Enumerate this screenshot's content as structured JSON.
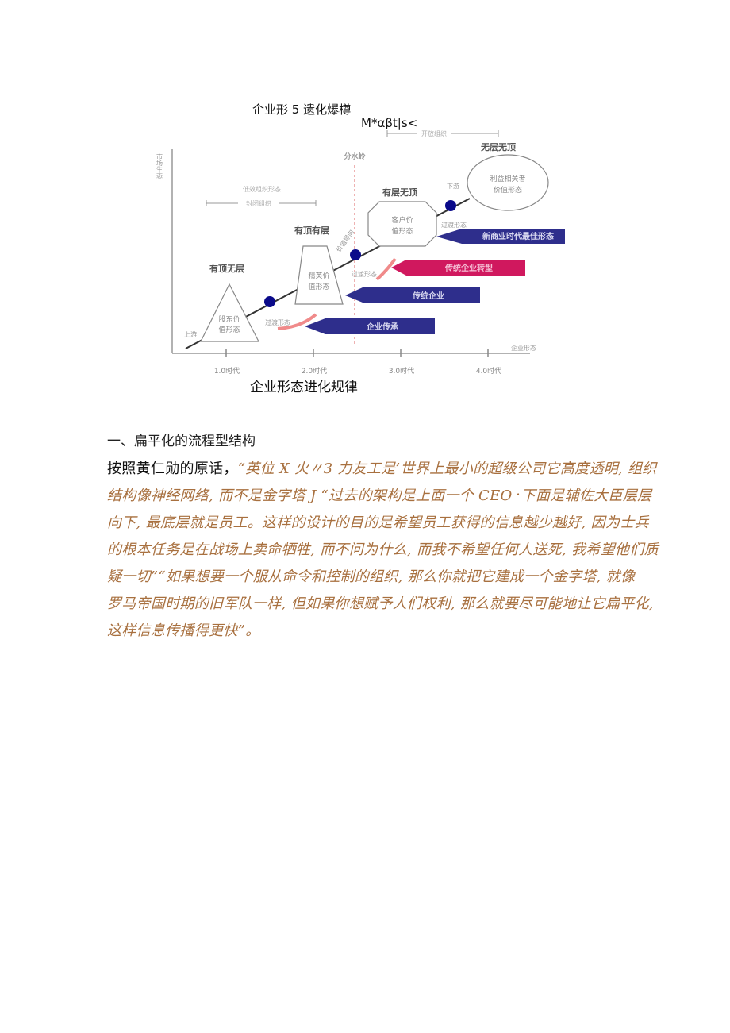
{
  "diagram": {
    "title": "企业形 5 遗化爆樽",
    "subtitle": "M*αβt|s<",
    "y_axis_label": "市场生态",
    "x_axis_label": "企业形态",
    "eras": [
      "1.0时代",
      "2.0时代",
      "3.0时代",
      "4.0时代"
    ],
    "watershed": "分水岭",
    "closed_bracket_top": "低效组织形态",
    "closed_bracket": "封闭组织",
    "open_bracket": "开放组织",
    "upstream": "上游",
    "downstream": "下游",
    "stages": [
      {
        "title": "有顶无层",
        "shape_text_1": "股东价",
        "shape_text_2": "值形态"
      },
      {
        "title": "有顶有层",
        "shape_text_1": "精英价",
        "shape_text_2": "值形态"
      },
      {
        "title": "有层无顶",
        "shape_text_1": "客户价",
        "shape_text_2": "值形态"
      },
      {
        "title": "无层无顶",
        "shape_text_1": "利益相关者",
        "shape_text_2": "价值形态"
      }
    ],
    "transition_label": "过渡形态",
    "value_orientation": "价值导向",
    "arrows": [
      {
        "label": "企业传承",
        "color": "#2e2e8c"
      },
      {
        "label": "传统企业",
        "color": "#2e2e8c"
      },
      {
        "label": "传统企业转型",
        "color": "#d0185e"
      },
      {
        "label": "新商业时代最佳形态",
        "color": "#2e2e8c"
      }
    ],
    "dot_color": "#0a0a8a",
    "caption": "企业形态进化规律"
  },
  "article": {
    "heading": "一、扁平化的流程型结构",
    "lead": "按照黄仁勋的原话，",
    "lines": [
      "“英位 X 火〃3 力友工是’世界上最小的超级公司它高度透明, 组织",
      "结构像神经网络, 而不是金字塔 J “过去的架构是上面一个 CEO᛫下面是辅佐大臣层层",
      "向下, 最底层就是员工。这样的设计的目的是希望员工获得的信息越少越好, 因为士兵",
      "的根本任务是在战场上卖命牺牲, 而不问为什么, 而我不希望任何人送死, 我希望他们质",
      "疑一切”“如果想要一个服从命令和控制的组织, 那么你就把它建成一个金字塔, 就像",
      "罗马帝国时期的旧军队一样, 但如果你想赋予人们权利, 那么就要尽可能地让它扁平化,",
      "这样信息传播得更快”。"
    ],
    "quote_color": "#a8703f"
  }
}
